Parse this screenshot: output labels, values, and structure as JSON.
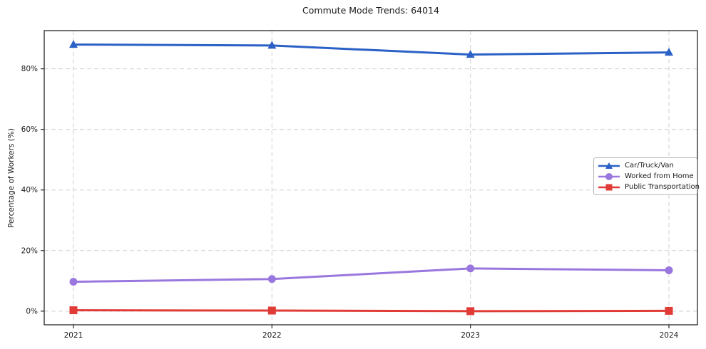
{
  "chart_data": {
    "type": "line",
    "title": "Commute Mode Trends: 64014",
    "xlabel": "",
    "ylabel": "Percentage of Workers (%)",
    "categories": [
      "2021",
      "2022",
      "2023",
      "2024"
    ],
    "series": [
      {
        "name": "Car/Truck/Van",
        "color": "#2b61c6",
        "marker": "triangle",
        "values": [
          88.0,
          87.7,
          84.7,
          85.4
        ]
      },
      {
        "name": "Worked from Home",
        "color": "#9a77de",
        "marker": "circle",
        "values": [
          9.7,
          10.6,
          14.1,
          13.5
        ]
      },
      {
        "name": "Public Transportation",
        "color": "#e13b38",
        "marker": "square",
        "values": [
          0.3,
          0.2,
          0.0,
          0.1
        ]
      }
    ],
    "y_ticks": [
      "0%",
      "20%",
      "40%",
      "60%",
      "80%"
    ],
    "y_tick_values": [
      0,
      20,
      40,
      60,
      80
    ],
    "ylim": [
      -4.5,
      92.6
    ],
    "grid": true,
    "legend_position": "right-center",
    "colors": {
      "grid": "#cfcfcf",
      "spine": "#262626",
      "background": "#ffffff",
      "text": "#1a1a1a"
    }
  }
}
